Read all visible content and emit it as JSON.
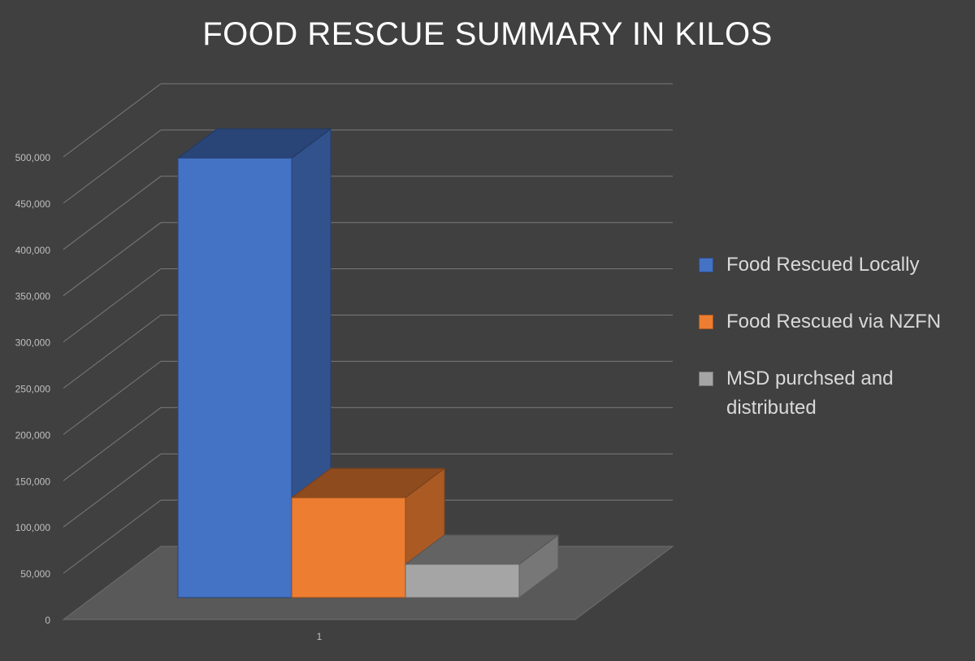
{
  "chart_data": {
    "type": "bar",
    "title": "FOOD RESCUE SUMMARY IN KILOS",
    "categories": [
      "1"
    ],
    "series": [
      {
        "name": "Food Rescued Locally",
        "values": [
          475000
        ],
        "color": "#4472C4"
      },
      {
        "name": "Food Rescued via NZFN",
        "values": [
          108000
        ],
        "color": "#ED7D31"
      },
      {
        "name": "MSD purchsed and distributed",
        "values": [
          36000
        ],
        "color": "#A5A5A5"
      }
    ],
    "ylim": [
      0,
      500000
    ],
    "yticks": [
      "0",
      "50,000",
      "100,000",
      "150,000",
      "200,000",
      "250,000",
      "300,000",
      "350,000",
      "400,000",
      "450,000",
      "500,000"
    ],
    "xlabel": "",
    "ylabel": "",
    "grid": true,
    "legend_position": "right",
    "style": "3d-column"
  }
}
